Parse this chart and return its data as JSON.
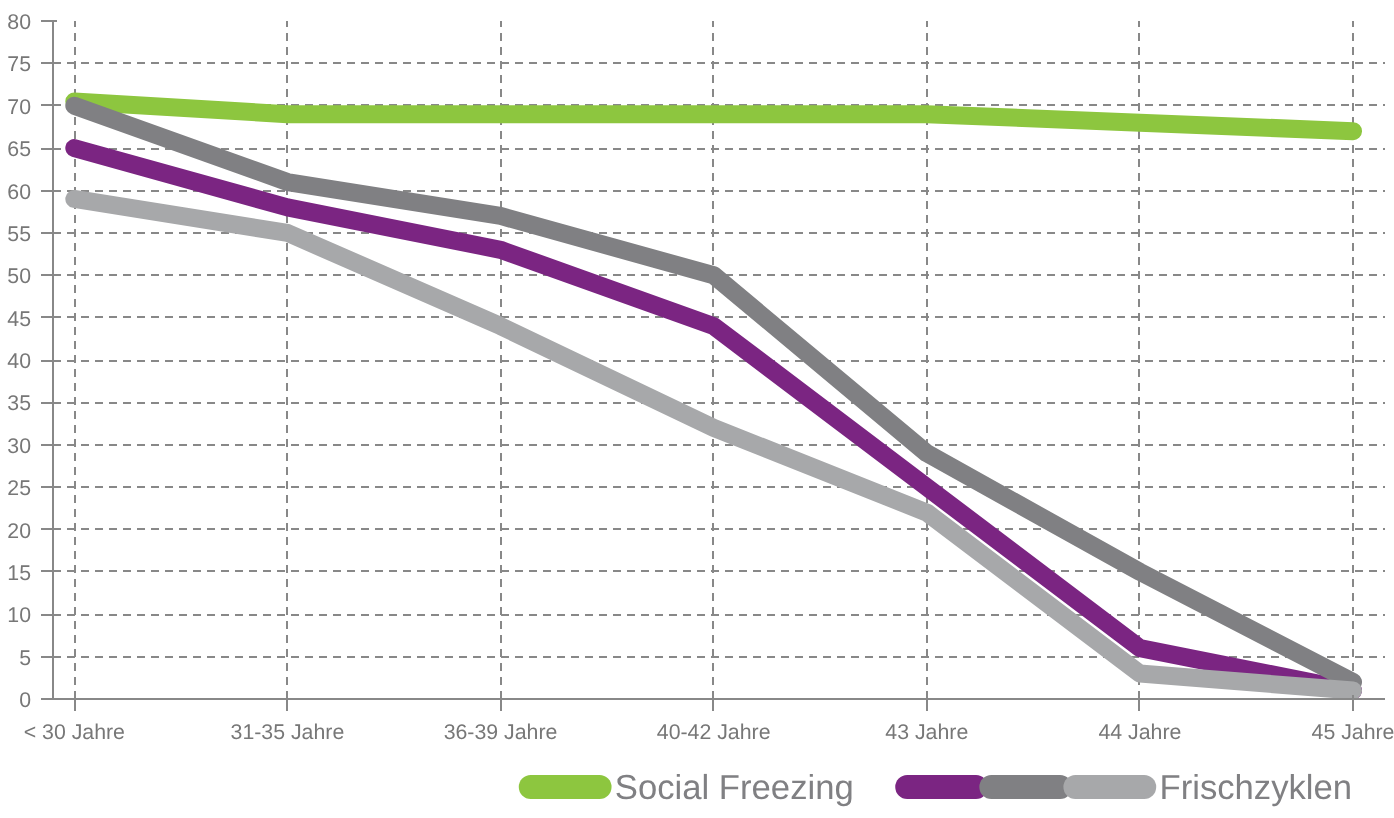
{
  "chart_data": {
    "type": "line",
    "categories": [
      "< 30 Jahre",
      "31-35 Jahre",
      "36-39 Jahre",
      "40-42 Jahre",
      "43 Jahre",
      "44 Jahre",
      "45 Jahre"
    ],
    "series": [
      {
        "name": "Social Freezing",
        "color": "#8dc63f",
        "values": [
          70.5,
          69,
          69,
          69,
          69,
          68,
          67
        ]
      },
      {
        "color": "#7b2582",
        "values": [
          65,
          58,
          53,
          44,
          25,
          6,
          1
        ]
      },
      {
        "color": "#808083",
        "values": [
          70,
          61,
          57,
          50,
          29,
          15,
          2
        ]
      },
      {
        "name": "Frischzyklen",
        "color": "#a7a8aa",
        "values": [
          59,
          55,
          44,
          32,
          22,
          3,
          1
        ]
      }
    ],
    "ylim": [
      0,
      80
    ],
    "yticks": [
      0,
      5,
      10,
      15,
      20,
      25,
      30,
      35,
      40,
      45,
      50,
      55,
      60,
      65,
      70,
      75,
      80
    ],
    "grid": true,
    "legend": "bottom",
    "line_style": "solid",
    "marker": "none"
  }
}
